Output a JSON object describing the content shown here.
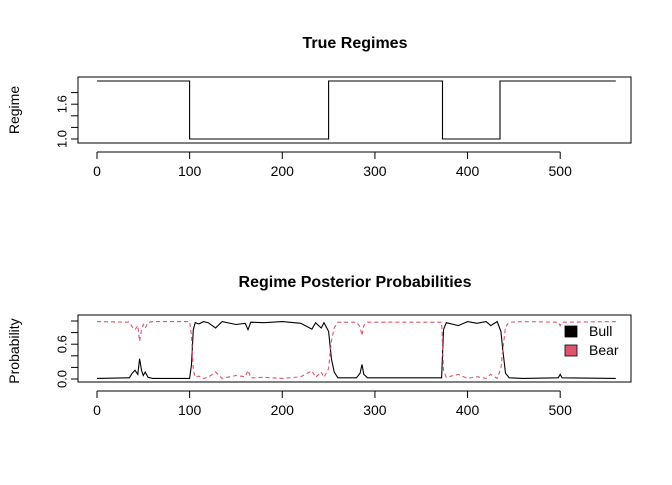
{
  "chart_data": [
    {
      "type": "line",
      "title": "True Regimes",
      "xlabel": "",
      "ylabel": "Regime",
      "xlim": [
        0,
        560
      ],
      "ylim": [
        1,
        2
      ],
      "x_ticks": [
        0,
        100,
        200,
        300,
        400,
        500
      ],
      "x_tick_labels": [
        "0",
        "100",
        "200",
        "300",
        "400",
        "500"
      ],
      "y_ticks": [
        1.0,
        1.2,
        1.4,
        1.6,
        1.8
      ],
      "y_tick_labels": [
        "1.0",
        "",
        "",
        "1.6",
        ""
      ],
      "grid": false,
      "series": [
        {
          "color": "#000000",
          "step_points": [
            [
              0,
              2
            ],
            [
              100,
              2
            ],
            [
              100,
              1
            ],
            [
              250,
              1
            ],
            [
              250,
              2
            ],
            [
              373,
              2
            ],
            [
              373,
              1
            ],
            [
              435,
              1
            ],
            [
              435,
              2
            ],
            [
              560,
              2
            ]
          ]
        }
      ]
    },
    {
      "type": "line",
      "title": "Regime Posterior Probabilities",
      "xlabel": "",
      "ylabel": "Probability",
      "xlim": [
        0,
        560
      ],
      "ylim": [
        0,
        1
      ],
      "x_ticks": [
        0,
        100,
        200,
        300,
        400,
        500
      ],
      "x_tick_labels": [
        "0",
        "100",
        "200",
        "300",
        "400",
        "500"
      ],
      "y_ticks": [
        0.0,
        0.2,
        0.4,
        0.6,
        0.8,
        1.0
      ],
      "y_tick_labels": [
        "0.0",
        "",
        "",
        "0.6",
        "",
        ""
      ],
      "grid": false,
      "legend": {
        "position": "right",
        "entries": [
          {
            "label": "Bull",
            "color": "#000000"
          },
          {
            "label": "Bear",
            "color": "#DF536B"
          }
        ]
      },
      "series": [
        {
          "name": "Bull",
          "color": "#000000",
          "style": "solid",
          "points": [
            [
              0,
              0.01
            ],
            [
              35,
              0.02
            ],
            [
              38,
              0.1
            ],
            [
              41,
              0.15
            ],
            [
              44,
              0.08
            ],
            [
              46,
              0.35
            ],
            [
              48,
              0.15
            ],
            [
              50,
              0.06
            ],
            [
              52,
              0.12
            ],
            [
              55,
              0.03
            ],
            [
              60,
              0.01
            ],
            [
              100,
              0.01
            ],
            [
              102,
              0.25
            ],
            [
              104,
              0.85
            ],
            [
              106,
              0.97
            ],
            [
              110,
              0.95
            ],
            [
              115,
              0.99
            ],
            [
              120,
              0.97
            ],
            [
              128,
              0.88
            ],
            [
              135,
              0.99
            ],
            [
              150,
              0.94
            ],
            [
              160,
              0.96
            ],
            [
              163,
              0.85
            ],
            [
              166,
              0.98
            ],
            [
              180,
              0.97
            ],
            [
              200,
              0.99
            ],
            [
              220,
              0.96
            ],
            [
              232,
              0.86
            ],
            [
              236,
              0.97
            ],
            [
              242,
              0.88
            ],
            [
              245,
              0.97
            ],
            [
              250,
              0.82
            ],
            [
              253,
              0.35
            ],
            [
              256,
              0.12
            ],
            [
              260,
              0.02
            ],
            [
              280,
              0.02
            ],
            [
              284,
              0.1
            ],
            [
              286,
              0.25
            ],
            [
              288,
              0.08
            ],
            [
              292,
              0.02
            ],
            [
              372,
              0.02
            ],
            [
              374,
              0.85
            ],
            [
              377,
              0.97
            ],
            [
              390,
              0.92
            ],
            [
              400,
              0.99
            ],
            [
              410,
              0.96
            ],
            [
              420,
              0.99
            ],
            [
              425,
              0.92
            ],
            [
              432,
              0.99
            ],
            [
              436,
              0.82
            ],
            [
              438,
              0.5
            ],
            [
              441,
              0.1
            ],
            [
              445,
              0.02
            ],
            [
              460,
              0.01
            ],
            [
              498,
              0.02
            ],
            [
              500,
              0.08
            ],
            [
              502,
              0.02
            ],
            [
              560,
              0.01
            ]
          ]
        },
        {
          "name": "Bear",
          "color": "#DF536B",
          "style": "dashed",
          "points": [
            [
              0,
              0.99
            ],
            [
              35,
              0.98
            ],
            [
              38,
              0.9
            ],
            [
              41,
              0.85
            ],
            [
              44,
              0.92
            ],
            [
              46,
              0.65
            ],
            [
              48,
              0.85
            ],
            [
              50,
              0.94
            ],
            [
              52,
              0.88
            ],
            [
              55,
              0.97
            ],
            [
              60,
              0.99
            ],
            [
              100,
              0.99
            ],
            [
              102,
              0.75
            ],
            [
              104,
              0.15
            ],
            [
              106,
              0.03
            ],
            [
              110,
              0.05
            ],
            [
              115,
              0.01
            ],
            [
              120,
              0.03
            ],
            [
              128,
              0.12
            ],
            [
              135,
              0.01
            ],
            [
              150,
              0.06
            ],
            [
              160,
              0.04
            ],
            [
              163,
              0.15
            ],
            [
              166,
              0.02
            ],
            [
              180,
              0.03
            ],
            [
              200,
              0.01
            ],
            [
              220,
              0.04
            ],
            [
              232,
              0.14
            ],
            [
              236,
              0.03
            ],
            [
              242,
              0.12
            ],
            [
              245,
              0.03
            ],
            [
              250,
              0.18
            ],
            [
              253,
              0.65
            ],
            [
              256,
              0.88
            ],
            [
              260,
              0.98
            ],
            [
              280,
              0.98
            ],
            [
              284,
              0.9
            ],
            [
              286,
              0.75
            ],
            [
              288,
              0.92
            ],
            [
              292,
              0.98
            ],
            [
              372,
              0.98
            ],
            [
              374,
              0.15
            ],
            [
              377,
              0.03
            ],
            [
              390,
              0.08
            ],
            [
              400,
              0.01
            ],
            [
              410,
              0.04
            ],
            [
              420,
              0.01
            ],
            [
              425,
              0.08
            ],
            [
              432,
              0.01
            ],
            [
              436,
              0.18
            ],
            [
              438,
              0.5
            ],
            [
              441,
              0.9
            ],
            [
              445,
              0.98
            ],
            [
              460,
              0.99
            ],
            [
              498,
              0.98
            ],
            [
              500,
              0.92
            ],
            [
              502,
              0.98
            ],
            [
              560,
              0.99
            ]
          ]
        }
      ]
    }
  ]
}
